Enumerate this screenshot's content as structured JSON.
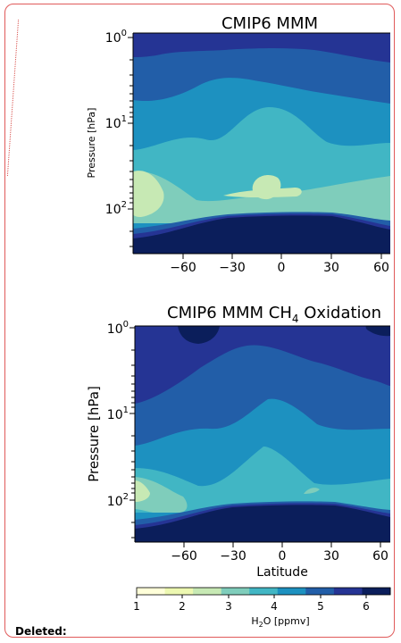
{
  "figure": {
    "colorbar": {
      "ticks": [
        "1",
        "2",
        "3",
        "4",
        "5",
        "6"
      ],
      "label_main": "H",
      "label_sub": "2",
      "label_rest": "O [ppmv]",
      "colors": [
        "#ffffd9",
        "#edf8b1",
        "#c7e9b4",
        "#7fcdbb",
        "#41b6c4",
        "#1d91c0",
        "#225ea8",
        "#253494",
        "#0b1e5b"
      ]
    },
    "plots": [
      {
        "title": "CMIP6 MMM",
        "title_sub": "",
        "title_after": "",
        "ylabel": "Pressure [hPa]",
        "xticks": [
          "−60",
          "−30",
          "0",
          "30",
          "60"
        ],
        "yticks": [
          {
            "base": "10",
            "exp": "0"
          },
          {
            "base": "10",
            "exp": "1"
          },
          {
            "base": "10",
            "exp": "2"
          }
        ],
        "xlabel": ""
      },
      {
        "title": "CMIP6 MMM CH",
        "title_sub": "4",
        "title_after": " Oxidation",
        "ylabel": "Pressure [hPa]",
        "xticks": [
          "−60",
          "−30",
          "0",
          "30",
          "60"
        ],
        "yticks": [
          {
            "base": "10",
            "exp": "0"
          },
          {
            "base": "10",
            "exp": "1"
          },
          {
            "base": "10",
            "exp": "2"
          }
        ],
        "xlabel": "Latitude"
      }
    ]
  },
  "annotation": {
    "deleted_label": "Deleted:"
  }
}
